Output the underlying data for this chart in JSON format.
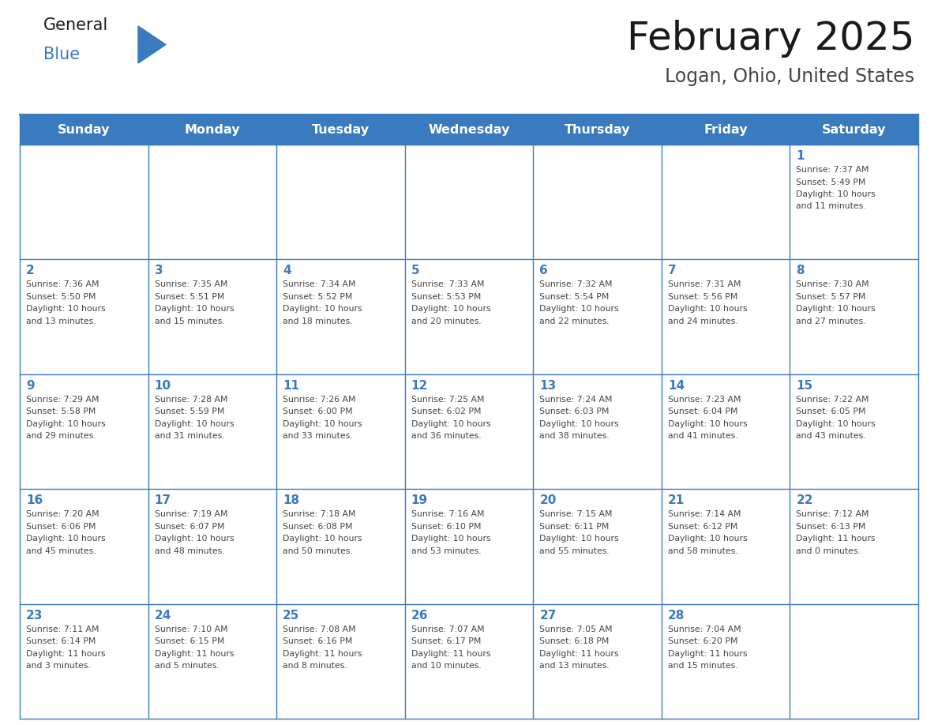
{
  "title": "February 2025",
  "subtitle": "Logan, Ohio, United States",
  "header_bg": "#3a7abf",
  "header_text_color": "#ffffff",
  "cell_bg_white": "#ffffff",
  "border_color": "#3a7abf",
  "day_names": [
    "Sunday",
    "Monday",
    "Tuesday",
    "Wednesday",
    "Thursday",
    "Friday",
    "Saturday"
  ],
  "title_color": "#1a1a1a",
  "subtitle_color": "#444444",
  "day_num_color": "#3a7abf",
  "cell_text_color": "#444444",
  "logo_general_color": "#1a1a1a",
  "logo_blue_color": "#3a7abf",
  "weeks": [
    [
      {
        "day": null,
        "sunrise": null,
        "sunset": null,
        "daylight": null
      },
      {
        "day": null,
        "sunrise": null,
        "sunset": null,
        "daylight": null
      },
      {
        "day": null,
        "sunrise": null,
        "sunset": null,
        "daylight": null
      },
      {
        "day": null,
        "sunrise": null,
        "sunset": null,
        "daylight": null
      },
      {
        "day": null,
        "sunrise": null,
        "sunset": null,
        "daylight": null
      },
      {
        "day": null,
        "sunrise": null,
        "sunset": null,
        "daylight": null
      },
      {
        "day": 1,
        "sunrise": "7:37 AM",
        "sunset": "5:49 PM",
        "daylight": "10 hours\nand 11 minutes."
      }
    ],
    [
      {
        "day": 2,
        "sunrise": "7:36 AM",
        "sunset": "5:50 PM",
        "daylight": "10 hours\nand 13 minutes."
      },
      {
        "day": 3,
        "sunrise": "7:35 AM",
        "sunset": "5:51 PM",
        "daylight": "10 hours\nand 15 minutes."
      },
      {
        "day": 4,
        "sunrise": "7:34 AM",
        "sunset": "5:52 PM",
        "daylight": "10 hours\nand 18 minutes."
      },
      {
        "day": 5,
        "sunrise": "7:33 AM",
        "sunset": "5:53 PM",
        "daylight": "10 hours\nand 20 minutes."
      },
      {
        "day": 6,
        "sunrise": "7:32 AM",
        "sunset": "5:54 PM",
        "daylight": "10 hours\nand 22 minutes."
      },
      {
        "day": 7,
        "sunrise": "7:31 AM",
        "sunset": "5:56 PM",
        "daylight": "10 hours\nand 24 minutes."
      },
      {
        "day": 8,
        "sunrise": "7:30 AM",
        "sunset": "5:57 PM",
        "daylight": "10 hours\nand 27 minutes."
      }
    ],
    [
      {
        "day": 9,
        "sunrise": "7:29 AM",
        "sunset": "5:58 PM",
        "daylight": "10 hours\nand 29 minutes."
      },
      {
        "day": 10,
        "sunrise": "7:28 AM",
        "sunset": "5:59 PM",
        "daylight": "10 hours\nand 31 minutes."
      },
      {
        "day": 11,
        "sunrise": "7:26 AM",
        "sunset": "6:00 PM",
        "daylight": "10 hours\nand 33 minutes."
      },
      {
        "day": 12,
        "sunrise": "7:25 AM",
        "sunset": "6:02 PM",
        "daylight": "10 hours\nand 36 minutes."
      },
      {
        "day": 13,
        "sunrise": "7:24 AM",
        "sunset": "6:03 PM",
        "daylight": "10 hours\nand 38 minutes."
      },
      {
        "day": 14,
        "sunrise": "7:23 AM",
        "sunset": "6:04 PM",
        "daylight": "10 hours\nand 41 minutes."
      },
      {
        "day": 15,
        "sunrise": "7:22 AM",
        "sunset": "6:05 PM",
        "daylight": "10 hours\nand 43 minutes."
      }
    ],
    [
      {
        "day": 16,
        "sunrise": "7:20 AM",
        "sunset": "6:06 PM",
        "daylight": "10 hours\nand 45 minutes."
      },
      {
        "day": 17,
        "sunrise": "7:19 AM",
        "sunset": "6:07 PM",
        "daylight": "10 hours\nand 48 minutes."
      },
      {
        "day": 18,
        "sunrise": "7:18 AM",
        "sunset": "6:08 PM",
        "daylight": "10 hours\nand 50 minutes."
      },
      {
        "day": 19,
        "sunrise": "7:16 AM",
        "sunset": "6:10 PM",
        "daylight": "10 hours\nand 53 minutes."
      },
      {
        "day": 20,
        "sunrise": "7:15 AM",
        "sunset": "6:11 PM",
        "daylight": "10 hours\nand 55 minutes."
      },
      {
        "day": 21,
        "sunrise": "7:14 AM",
        "sunset": "6:12 PM",
        "daylight": "10 hours\nand 58 minutes."
      },
      {
        "day": 22,
        "sunrise": "7:12 AM",
        "sunset": "6:13 PM",
        "daylight": "11 hours\nand 0 minutes."
      }
    ],
    [
      {
        "day": 23,
        "sunrise": "7:11 AM",
        "sunset": "6:14 PM",
        "daylight": "11 hours\nand 3 minutes."
      },
      {
        "day": 24,
        "sunrise": "7:10 AM",
        "sunset": "6:15 PM",
        "daylight": "11 hours\nand 5 minutes."
      },
      {
        "day": 25,
        "sunrise": "7:08 AM",
        "sunset": "6:16 PM",
        "daylight": "11 hours\nand 8 minutes."
      },
      {
        "day": 26,
        "sunrise": "7:07 AM",
        "sunset": "6:17 PM",
        "daylight": "11 hours\nand 10 minutes."
      },
      {
        "day": 27,
        "sunrise": "7:05 AM",
        "sunset": "6:18 PM",
        "daylight": "11 hours\nand 13 minutes."
      },
      {
        "day": 28,
        "sunrise": "7:04 AM",
        "sunset": "6:20 PM",
        "daylight": "11 hours\nand 15 minutes."
      },
      {
        "day": null,
        "sunrise": null,
        "sunset": null,
        "daylight": null
      }
    ]
  ],
  "figsize": [
    11.88,
    9.18
  ],
  "dpi": 100
}
